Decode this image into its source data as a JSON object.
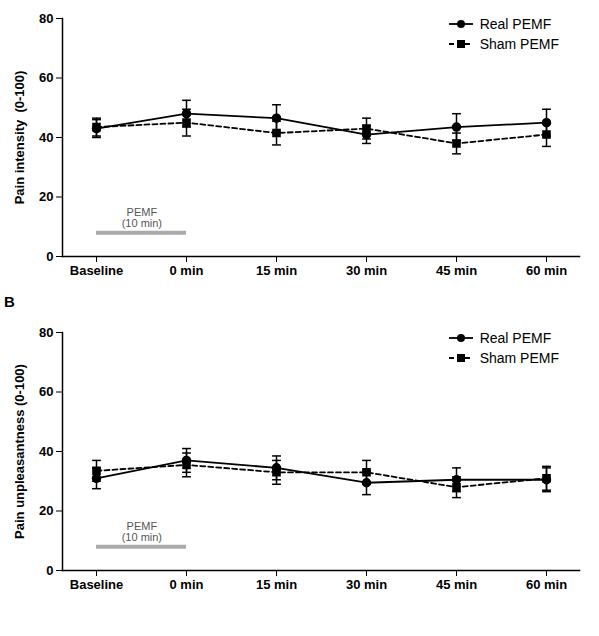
{
  "chart_data": [
    {
      "type": "line",
      "y_label": "Pain intensity  (0-100)",
      "categories": [
        "Baseline",
        "0 min",
        "15 min",
        "30 min",
        "45 min",
        "60 min"
      ],
      "ylim": [
        0,
        80
      ],
      "yticks": [
        0,
        20,
        40,
        60,
        80
      ],
      "legend": "top-right",
      "annotation": {
        "text": [
          "PEMF",
          "(10 min)"
        ],
        "x": [
          "Baseline",
          "0 min"
        ]
      },
      "series": [
        {
          "name": "Real PEMF",
          "color": "#000000",
          "marker": "circle",
          "line_style": "solid",
          "values": [
            43,
            48,
            46.5,
            41,
            43.5,
            45
          ],
          "errors": [
            3,
            4.5,
            4.5,
            3,
            4.5,
            4.5
          ]
        },
        {
          "name": "Sham PEMF",
          "color": "#000000",
          "marker": "square",
          "line_style": "dashed",
          "values": [
            43.5,
            45,
            41.5,
            43,
            38,
            41
          ],
          "errors": [
            3,
            4.5,
            4,
            3.5,
            3.5,
            4
          ]
        }
      ]
    },
    {
      "type": "line",
      "title": "B",
      "y_label": "Pain unpleasantness (0-100)",
      "categories": [
        "Baseline",
        "0 min",
        "15 min",
        "30 min",
        "45 min",
        "60 min"
      ],
      "ylim": [
        0,
        80
      ],
      "yticks": [
        0,
        20,
        40,
        60,
        80
      ],
      "legend": "top-right",
      "annotation": {
        "text": [
          "PEMF",
          "(10 min)"
        ],
        "x": [
          "Baseline",
          "0 min"
        ]
      },
      "series": [
        {
          "name": "Real PEMF",
          "color": "#000000",
          "marker": "circle",
          "line_style": "solid",
          "values": [
            31,
            37,
            34.5,
            29.5,
            30.5,
            30.5
          ],
          "errors": [
            3.5,
            4,
            4,
            4,
            4,
            4
          ]
        },
        {
          "name": "Sham PEMF",
          "color": "#000000",
          "marker": "square",
          "line_style": "dashed",
          "values": [
            33.5,
            35.5,
            33,
            33,
            28,
            31
          ],
          "errors": [
            3.5,
            4,
            4,
            4,
            3.5,
            4
          ]
        }
      ]
    }
  ]
}
